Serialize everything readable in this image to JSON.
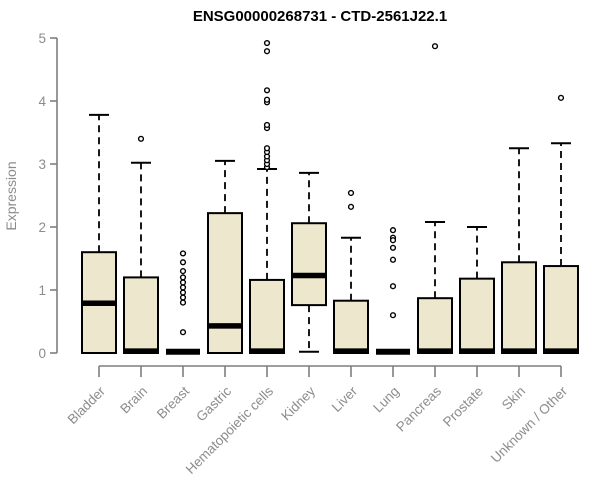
{
  "title": "ENSG00000268731 - CTD-2561J22.1",
  "colors": {
    "box_fill": "#EDE7CE",
    "box_stroke": "#000000",
    "median": "#000000",
    "axis": "#7f7f7f",
    "label_text": "#8c8c8c",
    "title_text": "#000000",
    "outlier_fill": "#ffffff",
    "background": "#ffffff"
  },
  "chart_data": {
    "type": "boxplot",
    "title": "ENSG00000268731 - CTD-2561J22.1",
    "xlabel": "",
    "ylabel": "Expression",
    "ylim": [
      0,
      5
    ],
    "yticks": [
      0,
      1,
      2,
      3,
      4,
      5
    ],
    "grid": false,
    "legend": false,
    "categories": [
      "Bladder",
      "Brain",
      "Breast",
      "Gastric",
      "Hematopoietic cells",
      "Kidney",
      "Liver",
      "Lung",
      "Pancreas",
      "Prostate",
      "Skin",
      "Unknown / Other"
    ],
    "series": [
      {
        "name": "Bladder",
        "whisker_low": 0,
        "q1": 0,
        "median": 0.79,
        "q3": 1.6,
        "whisker_high": 3.78,
        "outliers": []
      },
      {
        "name": "Brain",
        "whisker_low": 0,
        "q1": 0,
        "median": 0.03,
        "q3": 1.2,
        "whisker_high": 3.02,
        "outliers": [
          3.4
        ]
      },
      {
        "name": "Breast",
        "whisker_low": 0.02,
        "q1": 0.02,
        "median": 0.02,
        "q3": 0.02,
        "whisker_high": 0.02,
        "outliers": [
          1.58,
          1.44,
          1.3,
          1.2,
          1.12,
          1.04,
          0.96,
          0.88,
          0.8,
          0.33
        ]
      },
      {
        "name": "Gastric",
        "whisker_low": 0,
        "q1": 0,
        "median": 0.43,
        "q3": 2.22,
        "whisker_high": 3.05,
        "outliers": []
      },
      {
        "name": "Hematopoietic cells",
        "whisker_low": 0,
        "q1": 0,
        "median": 0.03,
        "q3": 1.16,
        "whisker_high": 2.92,
        "outliers": [
          2.95,
          3.0,
          3.06,
          3.12,
          3.19,
          3.25,
          3.57,
          3.62,
          3.98,
          4.02,
          4.17,
          4.79,
          4.92
        ]
      },
      {
        "name": "Kidney",
        "whisker_low": 0.02,
        "q1": 0.76,
        "median": 1.23,
        "q3": 2.06,
        "whisker_high": 2.86,
        "outliers": []
      },
      {
        "name": "Liver",
        "whisker_low": 0,
        "q1": 0,
        "median": 0.03,
        "q3": 0.83,
        "whisker_high": 1.83,
        "outliers": [
          2.54,
          2.32
        ]
      },
      {
        "name": "Lung",
        "whisker_low": 0.02,
        "q1": 0.02,
        "median": 0.02,
        "q3": 0.02,
        "whisker_high": 0.02,
        "outliers": [
          1.95,
          1.83,
          1.79,
          1.67,
          1.48,
          1.06,
          0.6
        ]
      },
      {
        "name": "Pancreas",
        "whisker_low": 0,
        "q1": 0,
        "median": 0.03,
        "q3": 0.87,
        "whisker_high": 2.08,
        "outliers": [
          4.87
        ]
      },
      {
        "name": "Prostate",
        "whisker_low": 0,
        "q1": 0,
        "median": 0.03,
        "q3": 1.18,
        "whisker_high": 2.0,
        "outliers": []
      },
      {
        "name": "Skin",
        "whisker_low": 0,
        "q1": 0,
        "median": 0.03,
        "q3": 1.44,
        "whisker_high": 3.25,
        "outliers": []
      },
      {
        "name": "Unknown / Other",
        "whisker_low": 0,
        "q1": 0,
        "median": 0.03,
        "q3": 1.38,
        "whisker_high": 3.33,
        "outliers": [
          4.05
        ]
      }
    ]
  }
}
